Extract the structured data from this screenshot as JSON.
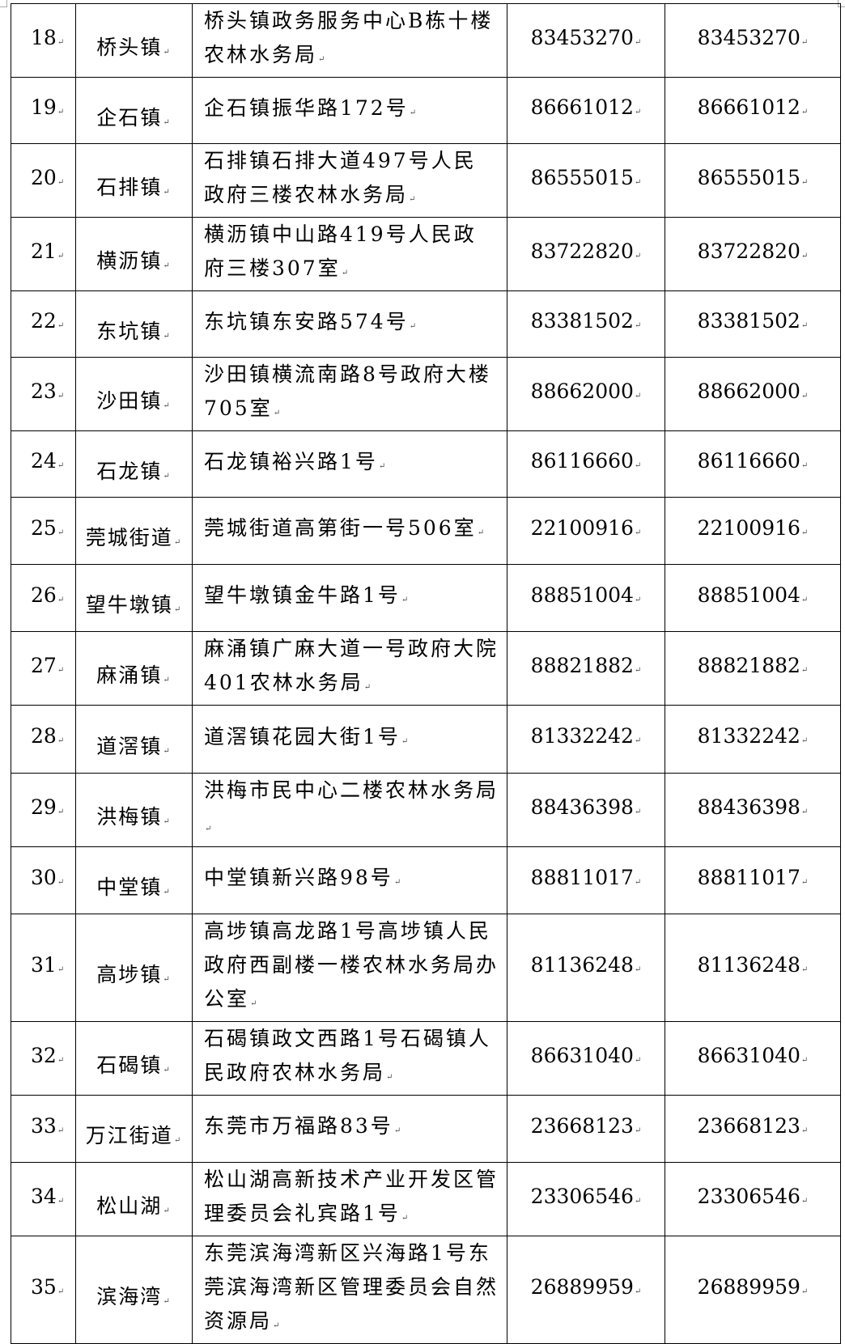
{
  "rows": [
    {
      "no": "18",
      "town": "桥头镇",
      "address": "桥头镇政务服务中心B栋十楼农林水务局",
      "phone1": "83453270",
      "phone2": "83453270"
    },
    {
      "no": "19",
      "town": "企石镇",
      "address": "企石镇振华路172号",
      "phone1": "86661012",
      "phone2": "86661012"
    },
    {
      "no": "20",
      "town": "石排镇",
      "address": "石排镇石排大道497号人民政府三楼农林水务局",
      "phone1": "86555015",
      "phone2": "86555015"
    },
    {
      "no": "21",
      "town": "横沥镇",
      "address": "横沥镇中山路419号人民政府三楼307室",
      "phone1": "83722820",
      "phone2": "83722820"
    },
    {
      "no": "22",
      "town": "东坑镇",
      "address": "东坑镇东安路574号",
      "phone1": "83381502",
      "phone2": "83381502"
    },
    {
      "no": "23",
      "town": "沙田镇",
      "address": "沙田镇横流南路8号政府大楼705室",
      "phone1": "88662000",
      "phone2": "88662000"
    },
    {
      "no": "24",
      "town": "石龙镇",
      "address": "石龙镇裕兴路1号",
      "phone1": "86116660",
      "phone2": "86116660"
    },
    {
      "no": "25",
      "town": "莞城街道",
      "address": "莞城街道高第街一号506室",
      "phone1": "22100916",
      "phone2": "22100916"
    },
    {
      "no": "26",
      "town": "望牛墩镇",
      "address": "望牛墩镇金牛路1号",
      "phone1": "88851004",
      "phone2": "88851004"
    },
    {
      "no": "27",
      "town": "麻涌镇",
      "address": "麻涌镇广麻大道一号政府大院401农林水务局",
      "phone1": "88821882",
      "phone2": "88821882"
    },
    {
      "no": "28",
      "town": "道滘镇",
      "address": "道滘镇花园大街1号",
      "phone1": "81332242",
      "phone2": "81332242"
    },
    {
      "no": "29",
      "town": "洪梅镇",
      "address": "洪梅市民中心二楼农林水务局",
      "phone1": "88436398",
      "phone2": "88436398"
    },
    {
      "no": "30",
      "town": "中堂镇",
      "address": "中堂镇新兴路98号",
      "phone1": "88811017",
      "phone2": "88811017"
    },
    {
      "no": "31",
      "town": "高埗镇",
      "address": "高埗镇高龙路1号高埗镇人民政府西副楼一楼农林水务局办公室",
      "phone1": "81136248",
      "phone2": "81136248"
    },
    {
      "no": "32",
      "town": "石碣镇",
      "address": "石碣镇政文西路1号石碣镇人民政府农林水务局",
      "phone1": "86631040",
      "phone2": "86631040"
    },
    {
      "no": "33",
      "town": "万江街道",
      "address": "东莞市万福路83号",
      "phone1": "23668123",
      "phone2": "23668123"
    },
    {
      "no": "34",
      "town": "松山湖",
      "address": "松山湖高新技术产业开发区管理委员会礼宾路1号",
      "phone1": "23306546",
      "phone2": "23306546"
    },
    {
      "no": "35",
      "town": "滨海湾",
      "address": "东莞滨海湾新区兴海路1号东莞滨海湾新区管理委员会自然资源局",
      "phone1": "26889959",
      "phone2": "26889959"
    }
  ]
}
